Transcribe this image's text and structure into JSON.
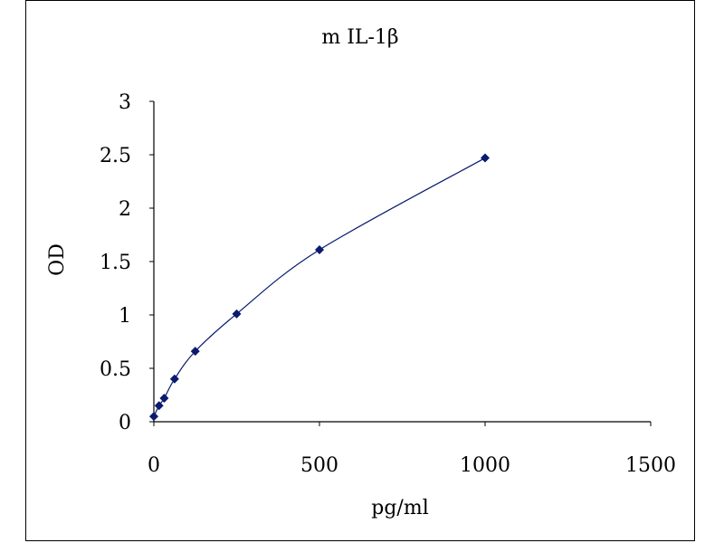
{
  "chart_data": {
    "type": "scatter",
    "title": "m IL-1β",
    "xlabel": "pg/ml",
    "ylabel": "OD",
    "xlim": [
      0,
      1500
    ],
    "ylim": [
      0,
      3
    ],
    "xticks": [
      "0",
      "500",
      "1000",
      "1500"
    ],
    "yticks": [
      "0",
      "0.5",
      "1",
      "1.5",
      "2",
      "2.5",
      "3"
    ],
    "grid": false,
    "legend": "none",
    "series": [
      {
        "x": [
          0,
          15.6,
          31.25,
          62.5,
          125,
          250,
          500,
          1000
        ],
        "y": [
          0.05,
          0.15,
          0.22,
          0.4,
          0.66,
          1.01,
          1.61,
          2.47
        ],
        "trendline": true
      }
    ],
    "colors": {
      "marker": "#0a1a6e",
      "line": "#0a1a6e",
      "axis": "#000000"
    }
  }
}
